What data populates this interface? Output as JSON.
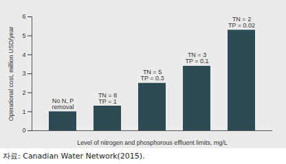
{
  "chart_data": {
    "type": "bar",
    "categories": [
      "No N, P\nremoval",
      "TN = 8\nTP = 1",
      "TN = 5\nTP = 0.3",
      "TN = 3\nTP = 0.1",
      "TN = 2\nTP = 0.02"
    ],
    "values": [
      1.0,
      1.3,
      2.5,
      3.4,
      5.3
    ],
    "color": "#2d4a55",
    "ylim": [
      0,
      6
    ],
    "yticks": [
      0,
      1,
      2,
      3,
      4,
      5,
      6
    ],
    "ylabel": "Operational cost, million USD/year",
    "xlabel": "Level of nitrogen and phosphorous effluent limits, mg/L",
    "tick_labels": "y",
    "grid": false,
    "caption": "자료: Canadian Water Network(2015)."
  }
}
